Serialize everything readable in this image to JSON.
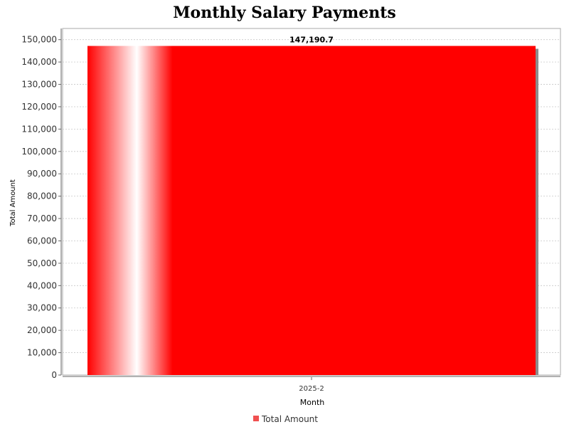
{
  "chart_data": {
    "type": "bar",
    "title": "Monthly Salary Payments",
    "xlabel": "Month",
    "ylabel": "Total Amount",
    "categories": [
      "2025-2"
    ],
    "series": [
      {
        "name": "Total Amount",
        "values": [
          147190.7
        ],
        "color": "#ff0000"
      }
    ],
    "data_labels": [
      "147,190.7"
    ],
    "ylim": [
      0,
      155000
    ],
    "yticks": [
      0,
      10000,
      20000,
      30000,
      40000,
      50000,
      60000,
      70000,
      80000,
      90000,
      100000,
      110000,
      120000,
      130000,
      140000,
      150000
    ],
    "ytick_labels": [
      "0",
      "10,000",
      "20,000",
      "30,000",
      "40,000",
      "50,000",
      "60,000",
      "70,000",
      "80,000",
      "90,000",
      "100,000",
      "110,000",
      "120,000",
      "130,000",
      "140,000",
      "150,000"
    ],
    "grid": true,
    "legend": "bottom-center",
    "legend_swatch_color": "#f05050"
  }
}
